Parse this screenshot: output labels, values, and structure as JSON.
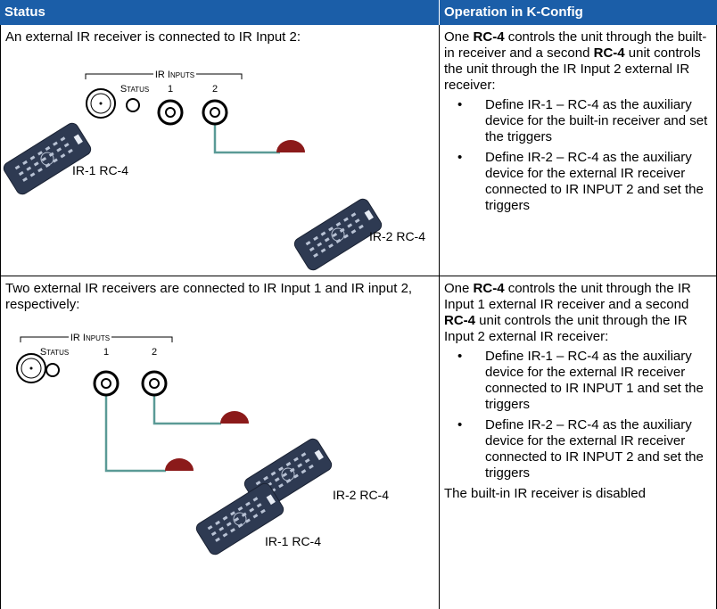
{
  "header": {
    "status": "Status",
    "operation": "Operation in K-Config"
  },
  "rows": [
    {
      "status_text": "An external IR receiver is connected to IR Input 2:",
      "diagram": {
        "ir_inputs": "IR Inputs",
        "status": "Status",
        "input1": "1",
        "input2": "2",
        "remote1": "IR-1 RC-4",
        "remote2": "IR-2 RC-4"
      },
      "intro": [
        {
          "text": "One "
        },
        {
          "text": "RC-4",
          "bold": true
        },
        {
          "text": " controls the unit through the built-in receiver and a second "
        },
        {
          "text": "RC-4",
          "bold": true
        },
        {
          "text": " unit controls the unit through the IR Input 2 external IR receiver:"
        }
      ],
      "bullets": [
        "Define IR-1 – RC-4 as the auxiliary device for the built-in receiver and set the triggers",
        "Define IR-2 – RC-4 as the auxiliary device for the external IR receiver connected to IR INPUT 2 and set the triggers"
      ]
    },
    {
      "status_text": "Two external IR receivers are connected to IR Input 1 and IR input 2, respectively:",
      "diagram": {
        "ir_inputs": "IR Inputs",
        "status": "Status",
        "input1": "1",
        "input2": "2",
        "remote1": "IR-1 RC-4",
        "remote2": "IR-2 RC-4"
      },
      "intro": [
        {
          "text": "One "
        },
        {
          "text": "RC-4",
          "bold": true
        },
        {
          "text": " controls the unit through the IR Input 1 external IR receiver and a second "
        },
        {
          "text": "RC-4",
          "bold": true
        },
        {
          "text": " unit controls the unit through the IR Input 2 external IR receiver:"
        }
      ],
      "bullets": [
        "Define IR-1 – RC-4 as the auxiliary device for the external IR receiver connected to IR INPUT 1 and set the triggers",
        "Define IR-2 – RC-4 as the auxiliary device for the external IR receiver connected to IR INPUT 2 and set the triggers"
      ],
      "note": "The built-in IR receiver is disabled"
    }
  ]
}
